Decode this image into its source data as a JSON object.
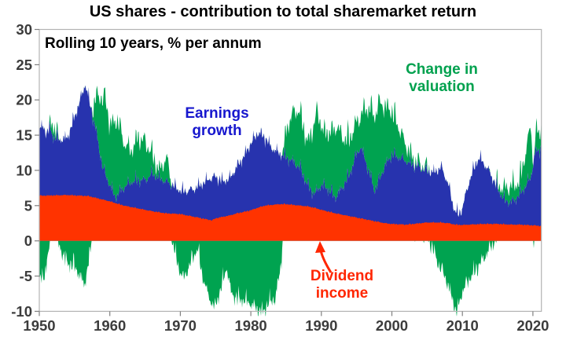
{
  "title": "US shares - contribution to total sharemarket return",
  "subtitle": "Rolling 10 years, % per annum",
  "annotations": {
    "earnings": {
      "text": "Earnings\ngrowth"
    },
    "valuation": {
      "text": "Change in\nvaluation"
    },
    "dividend": {
      "text": "Dividend\nincome"
    }
  },
  "colors": {
    "dividend": "#FF3300",
    "earnings": "#2733AE",
    "valuation": "#00A350",
    "dividend_label": "#FF2600",
    "earnings_label": "#1717CE",
    "valuation_label": "#00A14E",
    "title": "#000000",
    "axis_border": "#B3B3B3",
    "tick": "#808080",
    "tick_label": "#3C3C3C"
  },
  "chart_data": {
    "type": "area",
    "stacked": true,
    "title": "US shares - contribution to total sharemarket return",
    "note": "Rolling 10 years, % per annum",
    "x_unit": "year",
    "y_unit": "% per annum",
    "x_range": [
      1950,
      2021.2
    ],
    "y_range": [
      -10,
      30
    ],
    "x_ticks": [
      1950,
      1960,
      1970,
      1980,
      1990,
      2000,
      2010,
      2020
    ],
    "y_ticks": [
      30,
      25,
      20,
      15,
      10,
      5,
      0,
      -5,
      -10
    ],
    "grid": false,
    "legend_position": "annotations-inside-plot",
    "series": [
      {
        "name": "Dividend income",
        "role": "red band from 0 up to this value",
        "color": "#FF3300",
        "anchors": [
          [
            1950,
            6.4
          ],
          [
            1952,
            6.45
          ],
          [
            1954,
            6.5
          ],
          [
            1956,
            6.4
          ],
          [
            1957,
            6.35
          ],
          [
            1958,
            6.1
          ],
          [
            1959,
            5.85
          ],
          [
            1960,
            5.6
          ],
          [
            1961,
            5.3
          ],
          [
            1962,
            5.0
          ],
          [
            1963,
            4.8
          ],
          [
            1964,
            4.6
          ],
          [
            1965,
            4.4
          ],
          [
            1966,
            4.2
          ],
          [
            1967,
            4.05
          ],
          [
            1968,
            3.9
          ],
          [
            1969,
            3.85
          ],
          [
            1970,
            3.8
          ],
          [
            1971,
            3.6
          ],
          [
            1972,
            3.4
          ],
          [
            1973,
            3.2
          ],
          [
            1974,
            3.0
          ],
          [
            1974.5,
            2.9
          ],
          [
            1975,
            3.2
          ],
          [
            1976,
            3.4
          ],
          [
            1977,
            3.6
          ],
          [
            1978,
            3.9
          ],
          [
            1979,
            4.1
          ],
          [
            1980,
            4.35
          ],
          [
            1981,
            4.7
          ],
          [
            1982,
            5.0
          ],
          [
            1983,
            5.1
          ],
          [
            1984,
            5.2
          ],
          [
            1985,
            5.2
          ],
          [
            1986,
            5.1
          ],
          [
            1987,
            5.0
          ],
          [
            1988,
            4.9
          ],
          [
            1989,
            4.7
          ],
          [
            1990,
            4.4
          ],
          [
            1991,
            4.15
          ],
          [
            1992,
            3.9
          ],
          [
            1993,
            3.7
          ],
          [
            1994,
            3.5
          ],
          [
            1995,
            3.3
          ],
          [
            1996,
            3.1
          ],
          [
            1997,
            2.9
          ],
          [
            1998,
            2.7
          ],
          [
            1999,
            2.5
          ],
          [
            2000,
            2.4
          ],
          [
            2001,
            2.35
          ],
          [
            2002,
            2.3
          ],
          [
            2003,
            2.4
          ],
          [
            2004,
            2.5
          ],
          [
            2005,
            2.6
          ],
          [
            2006,
            2.6
          ],
          [
            2007,
            2.6
          ],
          [
            2008,
            2.5
          ],
          [
            2009,
            2.3
          ],
          [
            2010,
            2.25
          ],
          [
            2011,
            2.3
          ],
          [
            2012,
            2.35
          ],
          [
            2013,
            2.4
          ],
          [
            2014,
            2.4
          ],
          [
            2015,
            2.4
          ],
          [
            2016,
            2.35
          ],
          [
            2017,
            2.3
          ],
          [
            2018,
            2.3
          ],
          [
            2019,
            2.25
          ],
          [
            2020,
            2.2
          ],
          [
            2021.2,
            2.1
          ]
        ]
      },
      {
        "name": "Earnings growth",
        "role": "blue band from dividend level up to this stack-top value (dividend + earnings growth)",
        "color": "#2733AE",
        "anchors": [
          [
            1950,
            15.7
          ],
          [
            1950.5,
            16.2
          ],
          [
            1951,
            15.3
          ],
          [
            1951.5,
            15.8
          ],
          [
            1952,
            14.8
          ],
          [
            1953,
            14.3
          ],
          [
            1954,
            14.6
          ],
          [
            1955,
            17.5
          ],
          [
            1956,
            20.5
          ],
          [
            1956.5,
            22.2
          ],
          [
            1957,
            20.3
          ],
          [
            1957.7,
            17.0
          ],
          [
            1958,
            15.8
          ],
          [
            1958.5,
            13.0
          ],
          [
            1959,
            10.3
          ],
          [
            1960,
            7.9
          ],
          [
            1960.8,
            6.1
          ],
          [
            1961.5,
            7.0
          ],
          [
            1962,
            7.5
          ],
          [
            1963,
            8.3
          ],
          [
            1964,
            8.6
          ],
          [
            1965,
            8.5
          ],
          [
            1966,
            9.5
          ],
          [
            1967,
            8.9
          ],
          [
            1968,
            8.3
          ],
          [
            1969,
            7.8
          ],
          [
            1970,
            7.1
          ],
          [
            1971,
            7.0
          ],
          [
            1972,
            7.3
          ],
          [
            1973,
            8.0
          ],
          [
            1974,
            8.7
          ],
          [
            1975,
            9.0
          ],
          [
            1976,
            8.4
          ],
          [
            1977,
            8.8
          ],
          [
            1978,
            10.4
          ],
          [
            1979,
            11.9
          ],
          [
            1980,
            13.8
          ],
          [
            1981,
            15.3
          ],
          [
            1982,
            14.6
          ],
          [
            1983,
            13.1
          ],
          [
            1984,
            12.4
          ],
          [
            1985,
            11.8
          ],
          [
            1986,
            11.2
          ],
          [
            1987,
            10.3
          ],
          [
            1988,
            7.9
          ],
          [
            1989,
            6.6
          ],
          [
            1990,
            7.9
          ],
          [
            1991,
            7.3
          ],
          [
            1992,
            6.1
          ],
          [
            1993,
            7.6
          ],
          [
            1994,
            9.4
          ],
          [
            1995,
            12.3
          ],
          [
            1995.6,
            13.3
          ],
          [
            1996,
            12.1
          ],
          [
            1997,
            9.0
          ],
          [
            1997.5,
            7.1
          ],
          [
            1998,
            8.1
          ],
          [
            1999,
            10.6
          ],
          [
            2000,
            12.2
          ],
          [
            2001,
            11.8
          ],
          [
            2002,
            11.3
          ],
          [
            2003,
            10.8
          ],
          [
            2004,
            10.3
          ],
          [
            2005,
            9.9
          ],
          [
            2006,
            9.7
          ],
          [
            2007,
            10.4
          ],
          [
            2008,
            8.0
          ],
          [
            2008.8,
            4.5
          ],
          [
            2009.5,
            3.7
          ],
          [
            2010,
            4.6
          ],
          [
            2011,
            8.5
          ],
          [
            2012,
            11.2
          ],
          [
            2012.5,
            11.7
          ],
          [
            2013,
            11.0
          ],
          [
            2014,
            9.4
          ],
          [
            2015,
            7.4
          ],
          [
            2016,
            5.7
          ],
          [
            2017,
            5.4
          ],
          [
            2018,
            6.4
          ],
          [
            2019,
            7.8
          ],
          [
            2019.7,
            9.0
          ],
          [
            2020.3,
            12.4
          ],
          [
            2021.2,
            13.2
          ]
        ]
      },
      {
        "name": "Change in valuation",
        "role": "green band; signed value added above stack-top when positive, drawn from 0 downward when negative",
        "color": "#00A350",
        "anchors": [
          [
            1950,
            -4.8
          ],
          [
            1950.6,
            -5.8
          ],
          [
            1951.2,
            -2.0
          ],
          [
            1951.8,
            1.6
          ],
          [
            1952.4,
            1.0
          ],
          [
            1952.9,
            -1.0
          ],
          [
            1954,
            -3.2
          ],
          [
            1955,
            -3.6
          ],
          [
            1956.4,
            -6.3
          ],
          [
            1957.1,
            -2.5
          ],
          [
            1957.6,
            1.5
          ],
          [
            1958,
            4.4
          ],
          [
            1958.7,
            8.5
          ],
          [
            1959.3,
            10.9
          ],
          [
            1960,
            8.6
          ],
          [
            1961,
            11.0
          ],
          [
            1962,
            6.3
          ],
          [
            1963,
            4.4
          ],
          [
            1964,
            6.0
          ],
          [
            1965,
            5.4
          ],
          [
            1966,
            2.8
          ],
          [
            1967,
            0.9
          ],
          [
            1968,
            3.4
          ],
          [
            1968.8,
            0.2
          ],
          [
            1969.8,
            -4.0
          ],
          [
            1970.5,
            -5.5
          ],
          [
            1971.5,
            -3.0
          ],
          [
            1972.5,
            -1.0
          ],
          [
            1973,
            -4.5
          ],
          [
            1974,
            -8.0
          ],
          [
            1974.9,
            -9.6
          ],
          [
            1975.6,
            -7.2
          ],
          [
            1976.6,
            -3.8
          ],
          [
            1977.2,
            -7.6
          ],
          [
            1978.3,
            -8.3
          ],
          [
            1979.5,
            -8.6
          ],
          [
            1980.6,
            -9.5
          ],
          [
            1981.7,
            -10.2
          ],
          [
            1982.5,
            -8.8
          ],
          [
            1983.5,
            -8.2
          ],
          [
            1984.2,
            -4.0
          ],
          [
            1984.6,
            1.0
          ],
          [
            1985.2,
            4.5
          ],
          [
            1986,
            7.0
          ],
          [
            1986.8,
            7.9
          ],
          [
            1988.1,
            5.9
          ],
          [
            1989.3,
            11.4
          ],
          [
            1990.3,
            7.4
          ],
          [
            1991.3,
            8.4
          ],
          [
            1992.2,
            10.0
          ],
          [
            1993,
            6.9
          ],
          [
            1994,
            5.0
          ],
          [
            1995.5,
            4.2
          ],
          [
            1996,
            6.4
          ],
          [
            1997,
            9.8
          ],
          [
            1998.2,
            11.0
          ],
          [
            1999,
            8.4
          ],
          [
            2000,
            6.2
          ],
          [
            2001,
            4.1
          ],
          [
            2002,
            2.2
          ],
          [
            2003,
            0.8
          ],
          [
            2004,
            0.4
          ],
          [
            2005,
            0.5
          ],
          [
            2005.7,
            -0.8
          ],
          [
            2006.5,
            -3.2
          ],
          [
            2007.5,
            -5.0
          ],
          [
            2008.5,
            -8.0
          ],
          [
            2009.2,
            -10.3
          ],
          [
            2010,
            -7.2
          ],
          [
            2011,
            -5.4
          ],
          [
            2012,
            -4.0
          ],
          [
            2013,
            -2.6
          ],
          [
            2014,
            -0.9
          ],
          [
            2015,
            0.5
          ],
          [
            2016,
            1.6
          ],
          [
            2017,
            2.3
          ],
          [
            2018,
            1.8
          ],
          [
            2019,
            4.8
          ],
          [
            2019.7,
            7.2
          ],
          [
            2020.1,
            -1.2
          ],
          [
            2020.4,
            2.8
          ],
          [
            2021.2,
            2.6
          ]
        ]
      }
    ],
    "sampling_per_year": 12
  },
  "texture": {
    "noise_amp": {
      "dividend": 0.07,
      "earnings": 0.5,
      "valuation": 0.8
    },
    "spike_amp": {
      "dividend": 0.1,
      "earnings": 1.3,
      "valuation": 1.6
    }
  }
}
